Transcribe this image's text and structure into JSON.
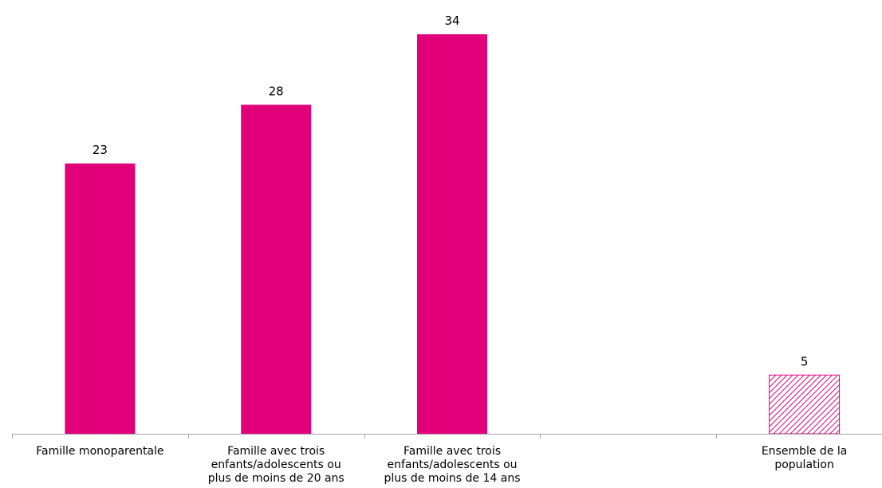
{
  "chart_data": {
    "type": "bar",
    "title": "",
    "xlabel": "",
    "ylabel": "",
    "ylim": [
      0,
      37
    ],
    "grid": false,
    "legend": "none",
    "categories": [
      [
        "Famille monoparentale"
      ],
      [
        "Famille avec trois",
        "enfants/adolescents ou",
        "plus de moins de 20 ans"
      ],
      [
        "Famille avec trois",
        "enfants/adolescents ou",
        "plus de moins de 14 ans"
      ],
      [],
      [
        "Ensemble de la",
        "population"
      ]
    ],
    "values": [
      23,
      28,
      34,
      null,
      5
    ],
    "hatched": [
      false,
      false,
      false,
      false,
      true
    ],
    "colors": {
      "bar": "#E2007A",
      "axis": "#A6A6A6",
      "text": "#000000"
    }
  }
}
